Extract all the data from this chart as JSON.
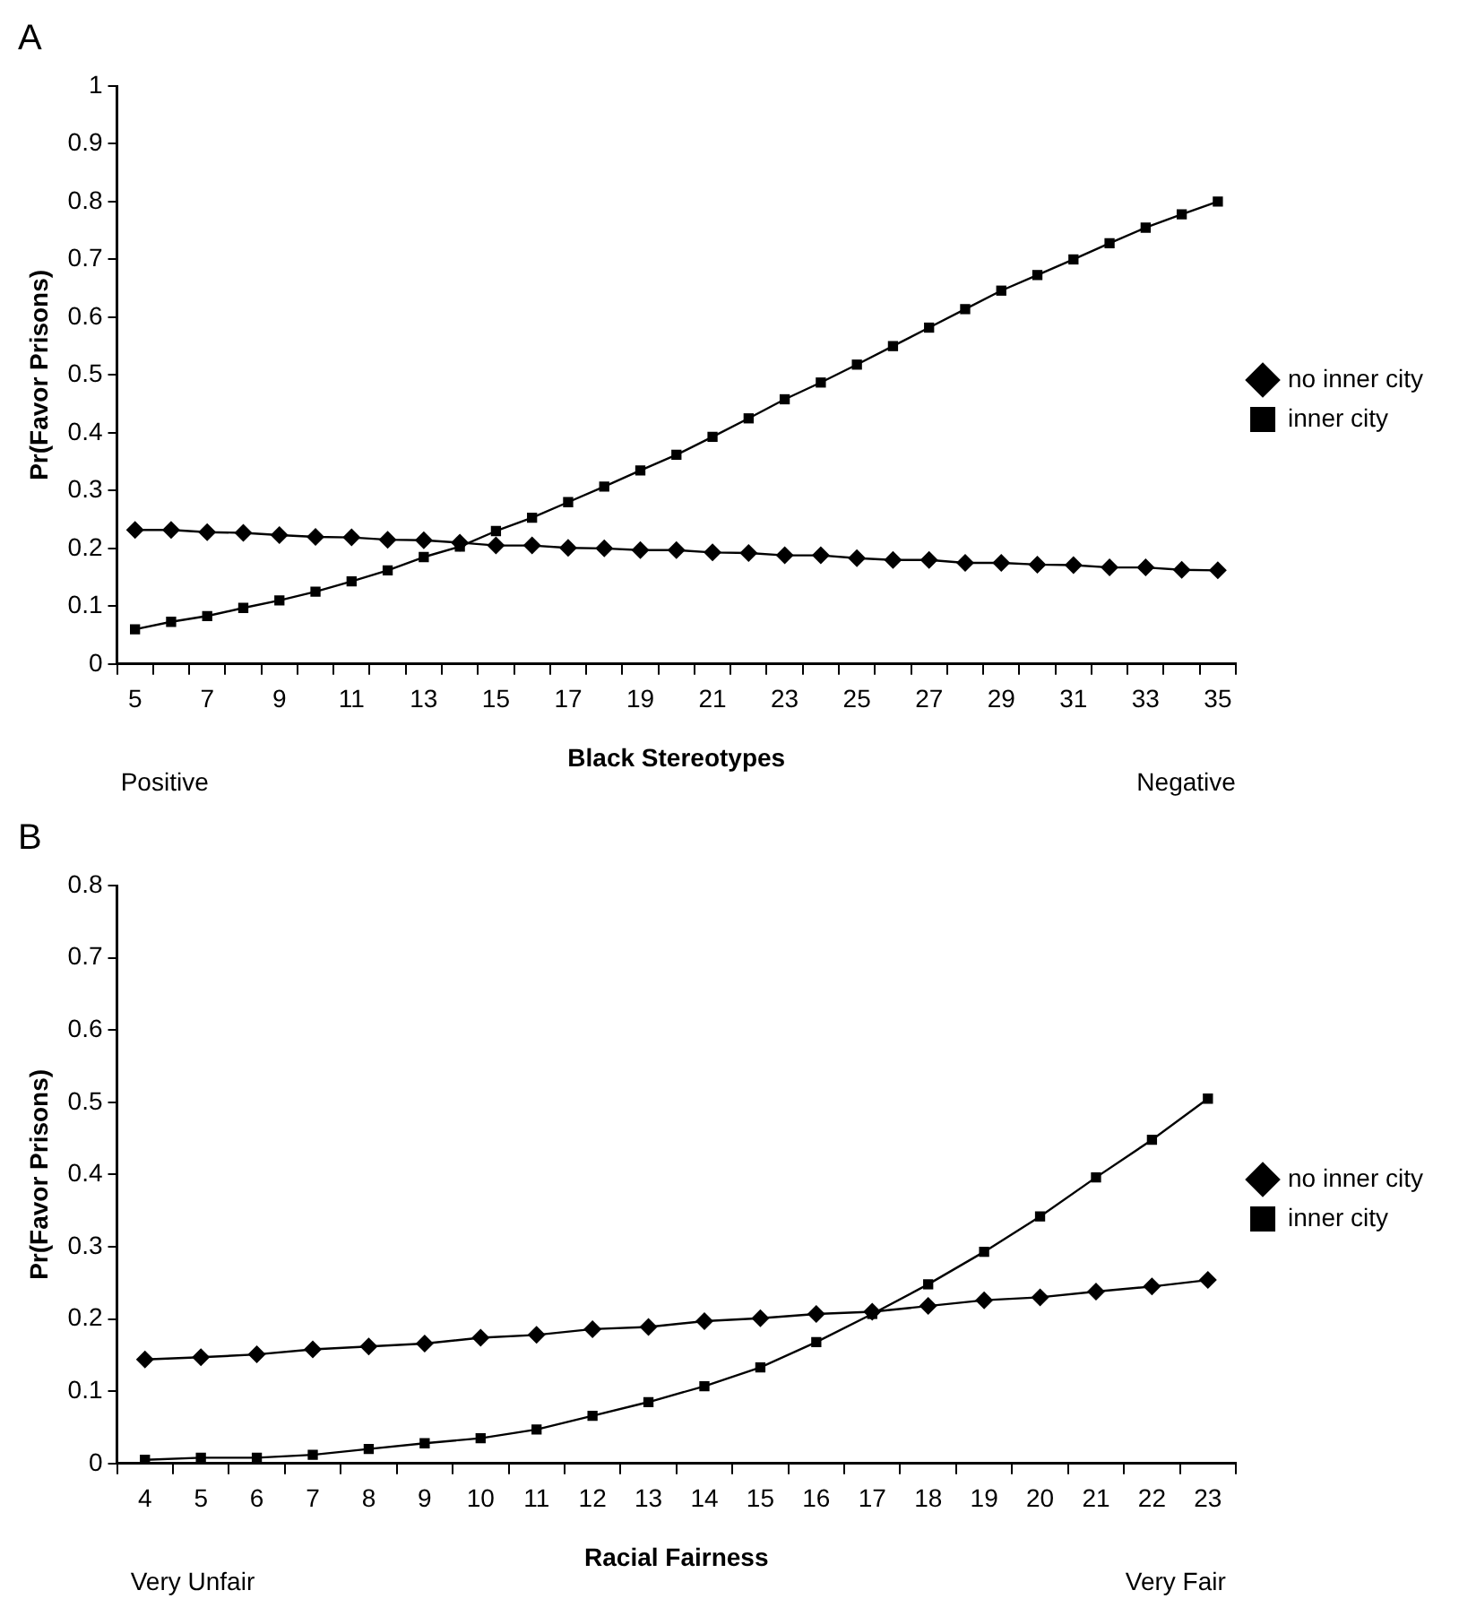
{
  "chart_data": [
    {
      "type": "line",
      "title": "A",
      "xlabel": "Black Stereotypes",
      "ylabel": "Pr(Favor Prisons)",
      "categories": [
        "5",
        null,
        "7",
        null,
        "9",
        null,
        "11",
        null,
        "13",
        null,
        "15",
        null,
        "17",
        null,
        "19",
        null,
        "21",
        null,
        "23",
        null,
        "25",
        null,
        "27",
        null,
        "29",
        null,
        "31",
        null,
        "33",
        null,
        "35"
      ],
      "series": [
        {
          "name": "no inner city",
          "color": "#000000",
          "marker": "diamond",
          "values": [
            0.232,
            0.232,
            0.228,
            0.227,
            0.223,
            0.22,
            0.219,
            0.215,
            0.214,
            0.21,
            0.205,
            0.205,
            0.201,
            0.2,
            0.197,
            0.197,
            0.193,
            0.192,
            0.188,
            0.188,
            0.183,
            0.18,
            0.18,
            0.175,
            0.175,
            0.172,
            0.171,
            0.167,
            0.167,
            0.163,
            0.162
          ]
        },
        {
          "name": "inner city",
          "color": "#000000",
          "marker": "square",
          "values": [
            0.06,
            0.073,
            0.083,
            0.097,
            0.11,
            0.125,
            0.143,
            0.162,
            0.185,
            0.203,
            0.23,
            0.253,
            0.28,
            0.307,
            0.335,
            0.362,
            0.393,
            0.425,
            0.458,
            0.487,
            0.518,
            0.55,
            0.582,
            0.614,
            0.646,
            0.673,
            0.7,
            0.728,
            0.755,
            0.778,
            0.8
          ]
        }
      ],
      "ylim": [
        0,
        1
      ],
      "yticks": [
        0,
        0.1,
        0.2,
        0.3,
        0.4,
        0.5,
        0.6,
        0.7,
        0.8,
        0.9,
        1
      ],
      "annotations": [
        "Positive",
        "Negative"
      ],
      "grid": false,
      "legend": "right"
    },
    {
      "type": "line",
      "title": "B",
      "xlabel": "Racial Fairness",
      "ylabel": "Pr(Favor Prisons)",
      "categories": [
        "4",
        "5",
        "6",
        "7",
        "8",
        "9",
        "10",
        "11",
        "12",
        "13",
        "14",
        "15",
        "16",
        "17",
        "18",
        "19",
        "20",
        "21",
        "22",
        "23"
      ],
      "series": [
        {
          "name": "no inner city",
          "color": "#000000",
          "marker": "diamond",
          "values": [
            0.144,
            0.147,
            0.151,
            0.158,
            0.162,
            0.166,
            0.174,
            0.178,
            0.186,
            0.189,
            0.197,
            0.201,
            0.207,
            0.21,
            0.218,
            0.226,
            0.23,
            0.238,
            0.245,
            0.254
          ]
        },
        {
          "name": "inner city",
          "color": "#000000",
          "marker": "square",
          "values": [
            0.005,
            0.008,
            0.008,
            0.012,
            0.02,
            0.028,
            0.035,
            0.047,
            0.066,
            0.085,
            0.107,
            0.133,
            0.168,
            0.207,
            0.248,
            0.293,
            0.342,
            0.396,
            0.448,
            0.505
          ]
        }
      ],
      "ylim": [
        0,
        0.8
      ],
      "yticks": [
        0,
        0.1,
        0.2,
        0.3,
        0.4,
        0.5,
        0.6,
        0.7,
        0.8
      ],
      "annotations": [
        "Very Unfair",
        "Very Fair"
      ],
      "grid": false,
      "legend": "right"
    }
  ]
}
